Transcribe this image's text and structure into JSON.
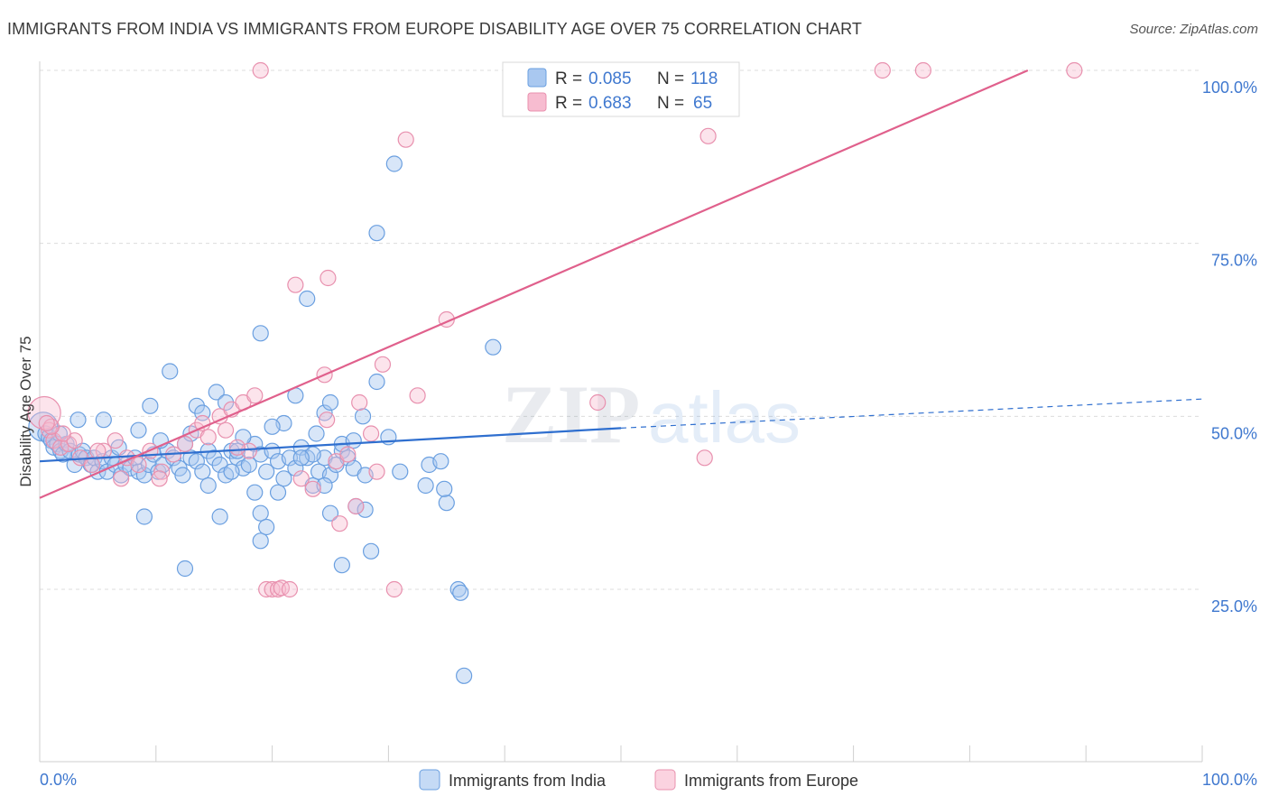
{
  "header": {
    "title": "IMMIGRANTS FROM INDIA VS IMMIGRANTS FROM EUROPE DISABILITY AGE OVER 75 CORRELATION CHART",
    "source": "Source: ZipAtlas.com"
  },
  "watermark": {
    "zip": "ZIP",
    "atlas": "atlas"
  },
  "legend_top": {
    "india": {
      "r_label": "R =",
      "r_value": "0.085",
      "n_label": "N =",
      "n_value": "118"
    },
    "europe": {
      "r_label": "R =",
      "r_value": "0.683",
      "n_label": "N =",
      "n_value": "65"
    }
  },
  "legend_bottom": {
    "india": "Immigrants from India",
    "europe": "Immigrants from Europe"
  },
  "colors": {
    "india_fill": "#a9c8f0",
    "india_stroke": "#6a9fe0",
    "india_line": "#2f6fcf",
    "europe_fill": "#f7bcd0",
    "europe_stroke": "#e890ae",
    "europe_line": "#e0608c",
    "tick_text": "#3f78cf",
    "grid": "#dcdcdc"
  },
  "chart_data": {
    "type": "scatter",
    "title": "IMMIGRANTS FROM INDIA VS IMMIGRANTS FROM EUROPE DISABILITY AGE OVER 75 CORRELATION CHART",
    "xlabel": "",
    "ylabel": "Disability Age Over 75",
    "xlim": [
      0,
      100
    ],
    "ylim": [
      0,
      105
    ],
    "x_tick_labels": [
      "0.0%",
      "100.0%"
    ],
    "y_tick_labels": [
      "100.0%",
      "75.0%",
      "50.0%",
      "25.0%"
    ],
    "y_ticks": [
      100,
      75,
      50,
      25
    ],
    "grid": true,
    "legend_position": "top-center",
    "series": [
      {
        "name": "Immigrants from India",
        "r": 0.085,
        "n": 118,
        "trend": {
          "x": [
            0,
            50
          ],
          "y": [
            43.5,
            48.3
          ],
          "dashed_to": [
            100,
            52.5
          ]
        },
        "points": [
          [
            0.3,
            48.5
          ],
          [
            0.5,
            47.5
          ],
          [
            0.8,
            47
          ],
          [
            1,
            46.5
          ],
          [
            1.2,
            45.5
          ],
          [
            1.5,
            46
          ],
          [
            1.8,
            45
          ],
          [
            2,
            44.5
          ],
          [
            2.3,
            46
          ],
          [
            2.6,
            45
          ],
          [
            3,
            43
          ],
          [
            3.4,
            44.5
          ],
          [
            3.7,
            45
          ],
          [
            4,
            44
          ],
          [
            4.4,
            43
          ],
          [
            4.7,
            44
          ],
          [
            5,
            42
          ],
          [
            5.4,
            43.5
          ],
          [
            5.8,
            42
          ],
          [
            6.2,
            44
          ],
          [
            6.5,
            43
          ],
          [
            7,
            41.5
          ],
          [
            7.4,
            43
          ],
          [
            7.8,
            42.5
          ],
          [
            8.2,
            44
          ],
          [
            8.5,
            42
          ],
          [
            9,
            41.5
          ],
          [
            9.4,
            43
          ],
          [
            9.8,
            44.5
          ],
          [
            10.2,
            42
          ],
          [
            10.6,
            43
          ],
          [
            11,
            45
          ],
          [
            11.5,
            44
          ],
          [
            12,
            42.5
          ],
          [
            12.5,
            46
          ],
          [
            13,
            44
          ],
          [
            13.5,
            43.5
          ],
          [
            14,
            42
          ],
          [
            14.5,
            45
          ],
          [
            15,
            44
          ],
          [
            15.5,
            43
          ],
          [
            16,
            41.5
          ],
          [
            16.5,
            45
          ],
          [
            17,
            44
          ],
          [
            17.5,
            42.5
          ],
          [
            18,
            43
          ],
          [
            18.5,
            46
          ],
          [
            19,
            44.5
          ],
          [
            19.5,
            42
          ],
          [
            20,
            45
          ],
          [
            20.5,
            43.5
          ],
          [
            21,
            41
          ],
          [
            21.5,
            44
          ],
          [
            22,
            42.5
          ],
          [
            22.5,
            45.5
          ],
          [
            23,
            44
          ],
          [
            23.5,
            40
          ],
          [
            24,
            42
          ],
          [
            24.5,
            44
          ],
          [
            25,
            41.5
          ],
          [
            25.5,
            43
          ],
          [
            26,
            45
          ],
          [
            26.5,
            44
          ],
          [
            27,
            42.5
          ],
          [
            5.5,
            49.5
          ],
          [
            8.5,
            48
          ],
          [
            9,
            35.5
          ],
          [
            9.5,
            51.5
          ],
          [
            11.2,
            56.5
          ],
          [
            12.5,
            28
          ],
          [
            13.5,
            51.5
          ],
          [
            14.5,
            40
          ],
          [
            15.5,
            35.5
          ],
          [
            15.2,
            53.5
          ],
          [
            16,
            52
          ],
          [
            17.5,
            47
          ],
          [
            18.5,
            39
          ],
          [
            19,
            36
          ],
          [
            19,
            32
          ],
          [
            19.5,
            34
          ],
          [
            21,
            49
          ],
          [
            22,
            53
          ],
          [
            23.5,
            44.5
          ],
          [
            24.5,
            50.5
          ],
          [
            25,
            52
          ],
          [
            26,
            46
          ],
          [
            24.5,
            40
          ],
          [
            25,
            36
          ],
          [
            26,
            28.5
          ],
          [
            27.2,
            37
          ],
          [
            28,
            36.5
          ],
          [
            28.5,
            30.5
          ],
          [
            29,
            55
          ],
          [
            30.5,
            86.5
          ],
          [
            29,
            76.5
          ],
          [
            23,
            67
          ],
          [
            19,
            62
          ],
          [
            30,
            47
          ],
          [
            31,
            42
          ],
          [
            33.2,
            40
          ],
          [
            33.5,
            43
          ],
          [
            34.5,
            43.5
          ],
          [
            35,
            37.5
          ],
          [
            36,
            25
          ],
          [
            36.2,
            24.5
          ],
          [
            34.8,
            39.5
          ],
          [
            36.5,
            12.5
          ],
          [
            39,
            60
          ],
          [
            17,
            45
          ],
          [
            16.5,
            42
          ],
          [
            20.5,
            39
          ],
          [
            22.5,
            44
          ],
          [
            28,
            41.5
          ],
          [
            14,
            50.5
          ],
          [
            13,
            47.5
          ],
          [
            12.3,
            41.5
          ],
          [
            3.3,
            49.5
          ],
          [
            1.7,
            47.5
          ],
          [
            6.8,
            45.5
          ],
          [
            10.4,
            46.5
          ],
          [
            27,
            46.5
          ],
          [
            20,
            48.5
          ],
          [
            23.8,
            47.5
          ],
          [
            27.8,
            50
          ]
        ]
      },
      {
        "name": "Immigrants from Europe",
        "r": 0.683,
        "n": 65,
        "trend": {
          "x": [
            0,
            85
          ],
          "y": [
            38.2,
            100
          ]
        },
        "points": [
          [
            0.4,
            50.5
          ],
          [
            0.8,
            48
          ],
          [
            1.2,
            46.5
          ],
          [
            1.8,
            45.5
          ],
          [
            2.5,
            46
          ],
          [
            3.5,
            44
          ],
          [
            4.5,
            43
          ],
          [
            5.5,
            45
          ],
          [
            6.5,
            46.5
          ],
          [
            7.5,
            44
          ],
          [
            8.5,
            43
          ],
          [
            9.5,
            45
          ],
          [
            10.5,
            42
          ],
          [
            11.5,
            44.5
          ],
          [
            12.5,
            46
          ],
          [
            13.5,
            48
          ],
          [
            14,
            49
          ],
          [
            14.5,
            47
          ],
          [
            15.5,
            50
          ],
          [
            16.5,
            51
          ],
          [
            17.5,
            52
          ],
          [
            18.5,
            53
          ],
          [
            19,
            100
          ],
          [
            22,
            69
          ],
          [
            24.5,
            56
          ],
          [
            24.8,
            70
          ],
          [
            27.5,
            52
          ],
          [
            28.5,
            47.5
          ],
          [
            29,
            42
          ],
          [
            29.5,
            57.5
          ],
          [
            30.5,
            25
          ],
          [
            31.5,
            90
          ],
          [
            35,
            64
          ],
          [
            41,
            100
          ],
          [
            43,
            100
          ],
          [
            46,
            100
          ],
          [
            48,
            52
          ],
          [
            57.5,
            90.5
          ],
          [
            57.2,
            44
          ],
          [
            72.5,
            100
          ],
          [
            76,
            100
          ],
          [
            89,
            100
          ],
          [
            19.5,
            25
          ],
          [
            20,
            25
          ],
          [
            20.5,
            25
          ],
          [
            20.8,
            25.2
          ],
          [
            21.5,
            25
          ],
          [
            22.5,
            41
          ],
          [
            23.5,
            39.5
          ],
          [
            25.5,
            43.5
          ],
          [
            25.8,
            34.5
          ],
          [
            24.7,
            49.5
          ],
          [
            26.5,
            44.5
          ],
          [
            27.2,
            37
          ],
          [
            18,
            45
          ],
          [
            17,
            45.5
          ],
          [
            16,
            48
          ],
          [
            10.3,
            41
          ],
          [
            7,
            41
          ],
          [
            5,
            45
          ],
          [
            3,
            46.5
          ],
          [
            2,
            47.5
          ],
          [
            1,
            48.5
          ],
          [
            0.6,
            49
          ],
          [
            32.5,
            53
          ]
        ]
      }
    ]
  }
}
